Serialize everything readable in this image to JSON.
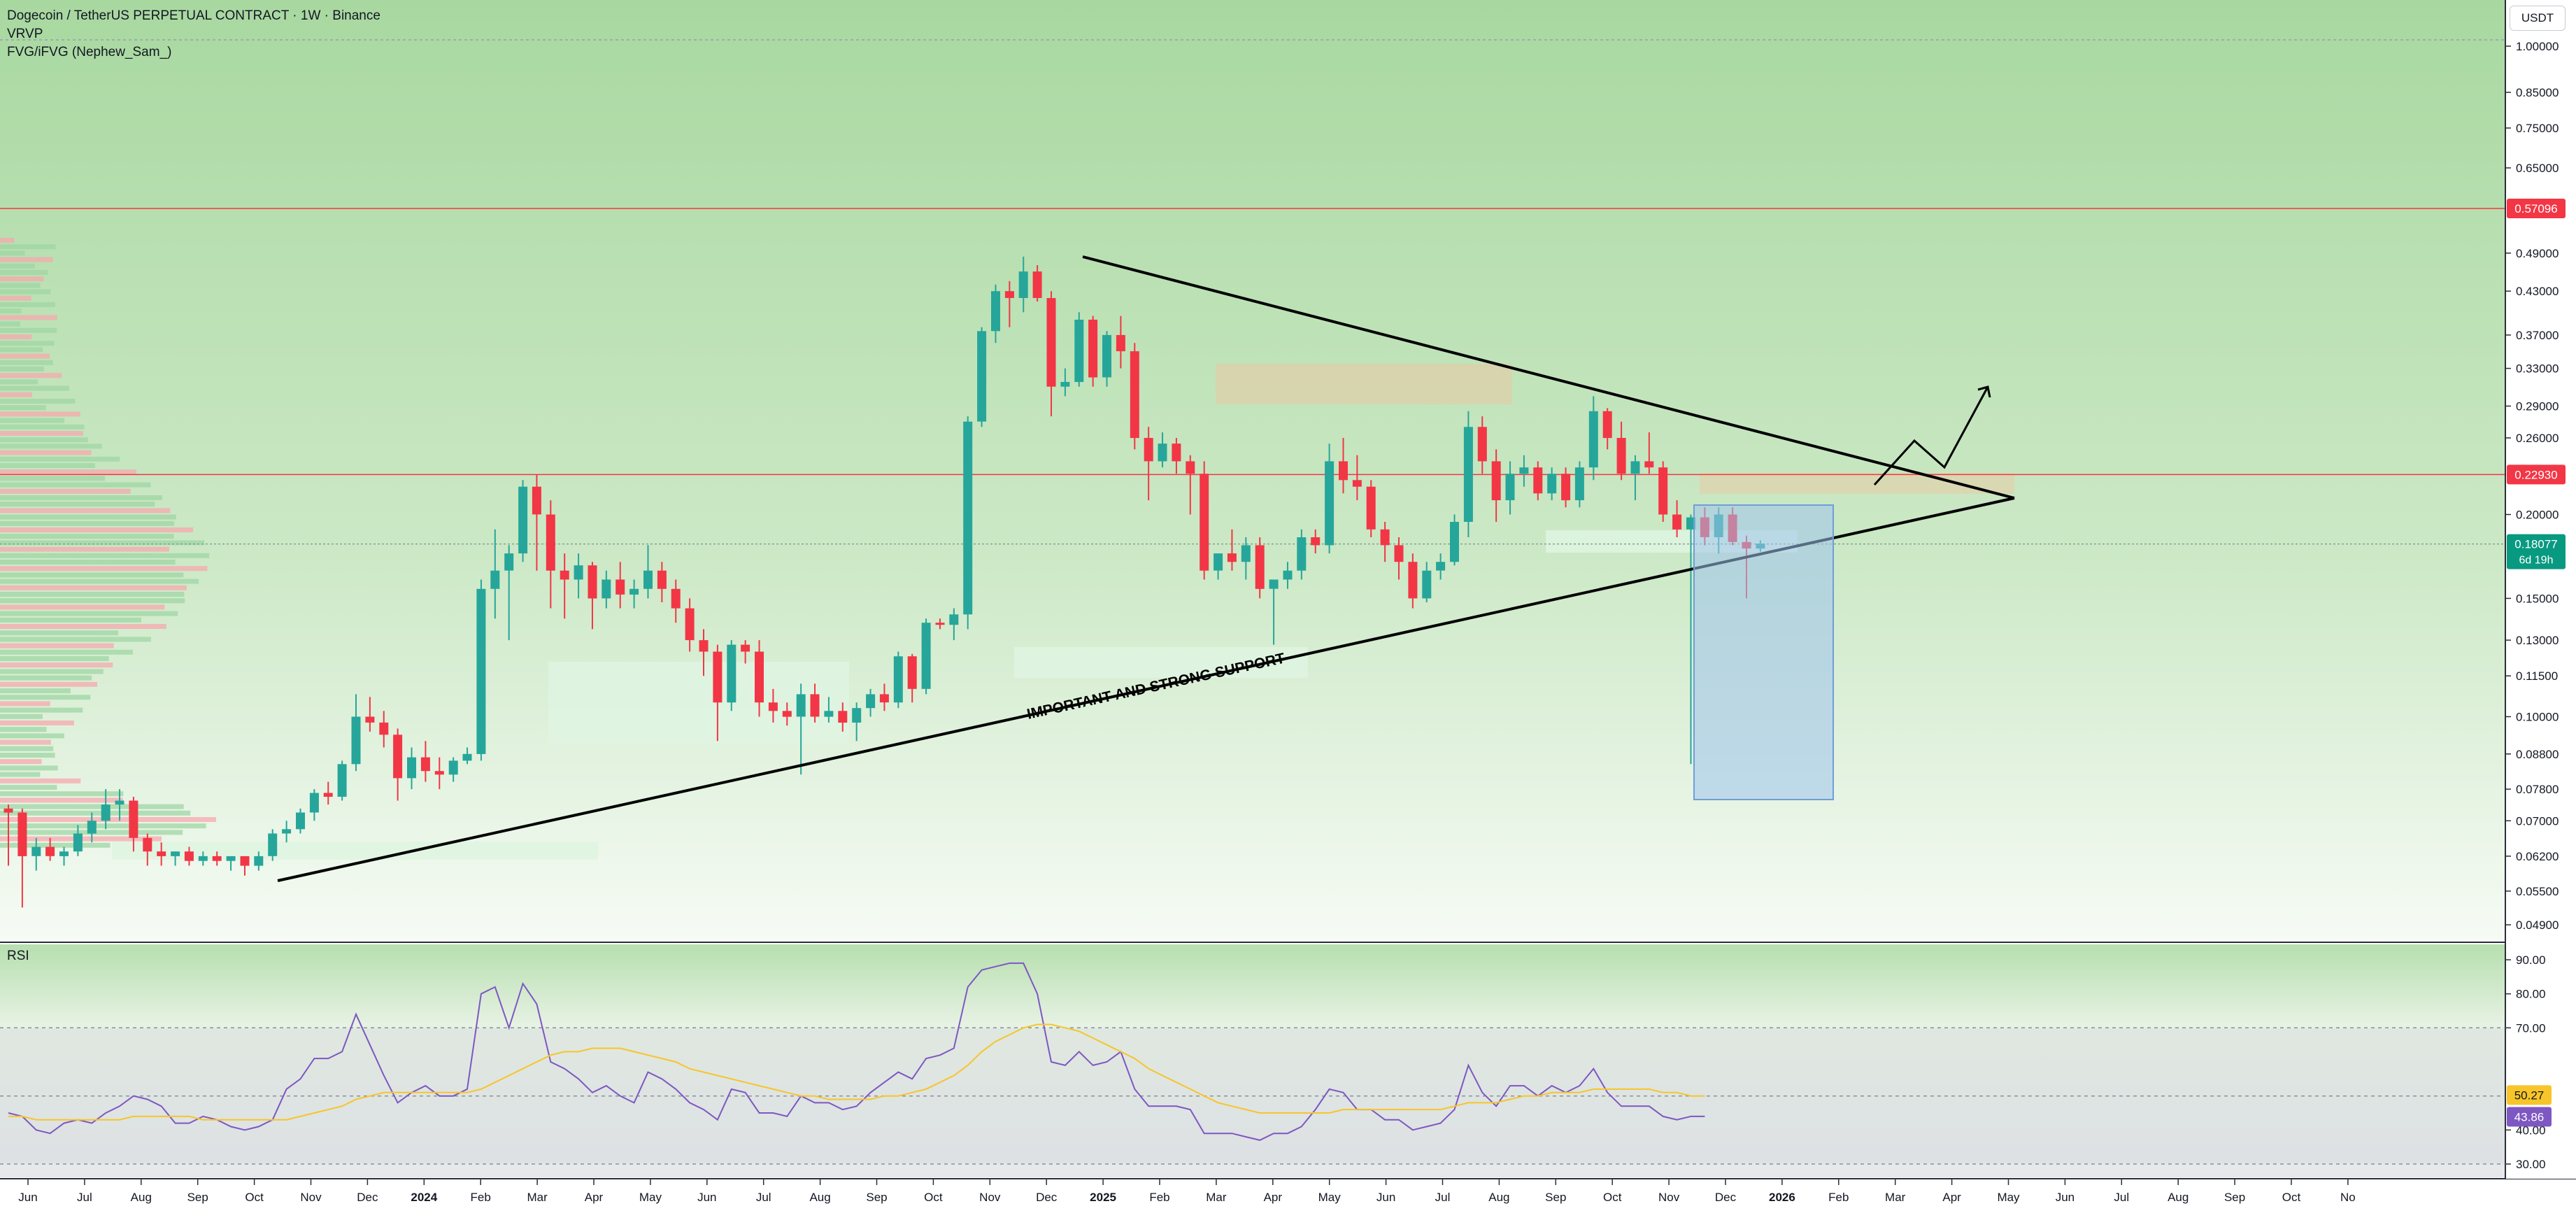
{
  "header": {
    "title": "Dogecoin / TetherUS PERPETUAL CONTRACT · 1W · Binance",
    "indicator1": "VRVP",
    "indicator2": "FVG/iFVG (Nephew_Sam_)",
    "currency_button": "USDT"
  },
  "rsi_panel": {
    "label": "RSI"
  },
  "colors": {
    "bull": "#26a69a",
    "bear": "#f23645",
    "price_line_red": "#f23645",
    "price_badge_green": "#089981",
    "rsi_line": "#7e57c2",
    "rsi_ma": "#f7c52a",
    "bg_top": "#a8d8a0",
    "bg_bottom": "#f4faf3"
  },
  "chart_data": [
    {
      "type": "candlestick",
      "title": "Dogecoin / TetherUS PERPETUAL CONTRACT · 1W · Binance",
      "scale": "log",
      "ylim": [
        0.046,
        1.02
      ],
      "y_ticks": [
        "1.00000",
        "0.85000",
        "0.75000",
        "0.65000",
        "0.49000",
        "0.43000",
        "0.37000",
        "0.33000",
        "0.29000",
        "0.26000",
        "0.20000",
        "0.15000",
        "0.13000",
        "0.11500",
        "0.10000",
        "0.08800",
        "0.07800",
        "0.07000",
        "0.06200",
        "0.05500",
        "0.04900"
      ],
      "x_ticks": [
        "Jun",
        "Jul",
        "Aug",
        "Sep",
        "Oct",
        "Nov",
        "Dec",
        "2024",
        "Feb",
        "Mar",
        "Apr",
        "May",
        "Jun",
        "Jul",
        "Aug",
        "Sep",
        "Oct",
        "Nov",
        "Dec",
        "2025",
        "Feb",
        "Mar",
        "Apr",
        "May",
        "Jun",
        "Jul",
        "Aug",
        "Sep",
        "Oct",
        "Nov",
        "Dec",
        "2026",
        "Feb",
        "Mar",
        "Apr",
        "May",
        "Jun",
        "Jul",
        "Aug",
        "Sep",
        "Oct",
        "No"
      ],
      "price_labels": [
        {
          "label": "0.57096",
          "value": 0.57096,
          "color": "red"
        },
        {
          "label": "0.22930",
          "value": 0.2293,
          "color": "red"
        },
        {
          "label": "0.18077",
          "value": 0.18077,
          "color": "green",
          "sublabel": "6d 19h"
        }
      ],
      "ohlc": [
        [
          0.073,
          0.074,
          0.06,
          0.072
        ],
        [
          0.072,
          0.073,
          0.052,
          0.062
        ],
        [
          0.062,
          0.066,
          0.059,
          0.064
        ],
        [
          0.064,
          0.066,
          0.061,
          0.062
        ],
        [
          0.062,
          0.064,
          0.06,
          0.063
        ],
        [
          0.063,
          0.069,
          0.062,
          0.067
        ],
        [
          0.067,
          0.072,
          0.065,
          0.07
        ],
        [
          0.07,
          0.078,
          0.068,
          0.074
        ],
        [
          0.074,
          0.078,
          0.07,
          0.075
        ],
        [
          0.075,
          0.076,
          0.063,
          0.066
        ],
        [
          0.066,
          0.067,
          0.06,
          0.063
        ],
        [
          0.063,
          0.065,
          0.06,
          0.062
        ],
        [
          0.062,
          0.063,
          0.06,
          0.063
        ],
        [
          0.063,
          0.064,
          0.06,
          0.061
        ],
        [
          0.061,
          0.063,
          0.06,
          0.062
        ],
        [
          0.062,
          0.063,
          0.06,
          0.061
        ],
        [
          0.061,
          0.062,
          0.059,
          0.062
        ],
        [
          0.062,
          0.062,
          0.058,
          0.06
        ],
        [
          0.06,
          0.063,
          0.059,
          0.062
        ],
        [
          0.062,
          0.068,
          0.061,
          0.067
        ],
        [
          0.067,
          0.07,
          0.065,
          0.068
        ],
        [
          0.068,
          0.073,
          0.067,
          0.072
        ],
        [
          0.072,
          0.078,
          0.07,
          0.077
        ],
        [
          0.077,
          0.08,
          0.074,
          0.076
        ],
        [
          0.076,
          0.086,
          0.075,
          0.085
        ],
        [
          0.085,
          0.108,
          0.083,
          0.1
        ],
        [
          0.1,
          0.107,
          0.095,
          0.098
        ],
        [
          0.098,
          0.102,
          0.09,
          0.094
        ],
        [
          0.094,
          0.096,
          0.075,
          0.081
        ],
        [
          0.081,
          0.09,
          0.078,
          0.087
        ],
        [
          0.087,
          0.092,
          0.08,
          0.083
        ],
        [
          0.083,
          0.087,
          0.078,
          0.082
        ],
        [
          0.082,
          0.087,
          0.08,
          0.086
        ],
        [
          0.086,
          0.09,
          0.085,
          0.088
        ],
        [
          0.088,
          0.16,
          0.086,
          0.155
        ],
        [
          0.155,
          0.19,
          0.14,
          0.165
        ],
        [
          0.165,
          0.18,
          0.13,
          0.175
        ],
        [
          0.175,
          0.225,
          0.17,
          0.22
        ],
        [
          0.22,
          0.229,
          0.165,
          0.2
        ],
        [
          0.2,
          0.21,
          0.145,
          0.165
        ],
        [
          0.165,
          0.175,
          0.14,
          0.16
        ],
        [
          0.16,
          0.175,
          0.15,
          0.168
        ],
        [
          0.168,
          0.17,
          0.135,
          0.15
        ],
        [
          0.15,
          0.165,
          0.145,
          0.16
        ],
        [
          0.16,
          0.17,
          0.145,
          0.152
        ],
        [
          0.152,
          0.16,
          0.145,
          0.155
        ],
        [
          0.155,
          0.18,
          0.15,
          0.165
        ],
        [
          0.165,
          0.17,
          0.148,
          0.155
        ],
        [
          0.155,
          0.16,
          0.138,
          0.145
        ],
        [
          0.145,
          0.15,
          0.125,
          0.13
        ],
        [
          0.13,
          0.135,
          0.115,
          0.125
        ],
        [
          0.125,
          0.128,
          0.092,
          0.105
        ],
        [
          0.105,
          0.13,
          0.102,
          0.128
        ],
        [
          0.128,
          0.13,
          0.12,
          0.125
        ],
        [
          0.125,
          0.13,
          0.1,
          0.105
        ],
        [
          0.105,
          0.11,
          0.098,
          0.102
        ],
        [
          0.102,
          0.105,
          0.097,
          0.1
        ],
        [
          0.1,
          0.112,
          0.082,
          0.108
        ],
        [
          0.108,
          0.112,
          0.098,
          0.1
        ],
        [
          0.1,
          0.107,
          0.098,
          0.102
        ],
        [
          0.102,
          0.105,
          0.095,
          0.098
        ],
        [
          0.098,
          0.105,
          0.092,
          0.103
        ],
        [
          0.103,
          0.11,
          0.1,
          0.108
        ],
        [
          0.108,
          0.112,
          0.102,
          0.105
        ],
        [
          0.105,
          0.125,
          0.103,
          0.123
        ],
        [
          0.123,
          0.124,
          0.105,
          0.11
        ],
        [
          0.11,
          0.14,
          0.108,
          0.138
        ],
        [
          0.138,
          0.14,
          0.135,
          0.137
        ],
        [
          0.137,
          0.145,
          0.13,
          0.142
        ],
        [
          0.142,
          0.28,
          0.135,
          0.275
        ],
        [
          0.275,
          0.38,
          0.27,
          0.375
        ],
        [
          0.375,
          0.44,
          0.36,
          0.43
        ],
        [
          0.43,
          0.445,
          0.38,
          0.42
        ],
        [
          0.42,
          0.484,
          0.4,
          0.46
        ],
        [
          0.46,
          0.47,
          0.415,
          0.42
        ],
        [
          0.42,
          0.43,
          0.28,
          0.31
        ],
        [
          0.31,
          0.33,
          0.3,
          0.315
        ],
        [
          0.315,
          0.4,
          0.31,
          0.39
        ],
        [
          0.39,
          0.395,
          0.31,
          0.32
        ],
        [
          0.32,
          0.375,
          0.31,
          0.37
        ],
        [
          0.37,
          0.395,
          0.33,
          0.35
        ],
        [
          0.35,
          0.36,
          0.25,
          0.26
        ],
        [
          0.26,
          0.27,
          0.21,
          0.24
        ],
        [
          0.24,
          0.265,
          0.235,
          0.255
        ],
        [
          0.255,
          0.26,
          0.23,
          0.24
        ],
        [
          0.24,
          0.245,
          0.2,
          0.23
        ],
        [
          0.23,
          0.24,
          0.16,
          0.165
        ],
        [
          0.165,
          0.175,
          0.16,
          0.175
        ],
        [
          0.175,
          0.19,
          0.165,
          0.17
        ],
        [
          0.17,
          0.185,
          0.16,
          0.18
        ],
        [
          0.18,
          0.185,
          0.15,
          0.155
        ],
        [
          0.155,
          0.16,
          0.128,
          0.16
        ],
        [
          0.16,
          0.17,
          0.155,
          0.165
        ],
        [
          0.165,
          0.19,
          0.16,
          0.185
        ],
        [
          0.185,
          0.19,
          0.175,
          0.18
        ],
        [
          0.18,
          0.255,
          0.175,
          0.24
        ],
        [
          0.24,
          0.26,
          0.215,
          0.225
        ],
        [
          0.225,
          0.245,
          0.21,
          0.22
        ],
        [
          0.22,
          0.225,
          0.185,
          0.19
        ],
        [
          0.19,
          0.195,
          0.17,
          0.18
        ],
        [
          0.18,
          0.185,
          0.16,
          0.17
        ],
        [
          0.17,
          0.175,
          0.145,
          0.15
        ],
        [
          0.15,
          0.17,
          0.148,
          0.165
        ],
        [
          0.165,
          0.175,
          0.16,
          0.17
        ],
        [
          0.17,
          0.2,
          0.168,
          0.195
        ],
        [
          0.195,
          0.285,
          0.185,
          0.27
        ],
        [
          0.27,
          0.28,
          0.23,
          0.24
        ],
        [
          0.24,
          0.25,
          0.195,
          0.21
        ],
        [
          0.21,
          0.24,
          0.2,
          0.23
        ],
        [
          0.23,
          0.245,
          0.22,
          0.235
        ],
        [
          0.235,
          0.24,
          0.21,
          0.215
        ],
        [
          0.215,
          0.235,
          0.21,
          0.23
        ],
        [
          0.23,
          0.235,
          0.205,
          0.21
        ],
        [
          0.21,
          0.24,
          0.205,
          0.235
        ],
        [
          0.235,
          0.3,
          0.225,
          0.285
        ],
        [
          0.285,
          0.288,
          0.25,
          0.26
        ],
        [
          0.26,
          0.275,
          0.225,
          0.23
        ],
        [
          0.23,
          0.245,
          0.21,
          0.24
        ],
        [
          0.24,
          0.265,
          0.23,
          0.235
        ],
        [
          0.235,
          0.24,
          0.195,
          0.2
        ],
        [
          0.2,
          0.21,
          0.185,
          0.19
        ],
        [
          0.19,
          0.2,
          0.085,
          0.198
        ],
        [
          0.198,
          0.205,
          0.18,
          0.185
        ],
        [
          0.185,
          0.205,
          0.175,
          0.2
        ],
        [
          0.2,
          0.205,
          0.18,
          0.182
        ],
        [
          0.182,
          0.186,
          0.15,
          0.178
        ],
        [
          0.178,
          0.183,
          0.176,
          0.181
        ]
      ],
      "annotation": "IMPORTANT AND STRONG SUPPORT"
    },
    {
      "type": "line",
      "title": "RSI",
      "ylim": [
        25,
        94
      ],
      "y_ticks": [
        "90.00",
        "80.00",
        "70.00",
        "40.00",
        "30.00"
      ],
      "level_lines": [
        70,
        50,
        30
      ],
      "current_values": [
        {
          "label": "50.27",
          "value": 50.27,
          "color": "yellow"
        },
        {
          "label": "43.86",
          "value": 43.86,
          "color": "purple"
        }
      ],
      "series": [
        {
          "values": [
            45,
            44,
            40,
            39,
            42,
            43,
            42,
            45,
            47,
            50,
            49,
            47,
            42,
            42,
            44,
            43,
            41,
            40,
            41,
            43,
            52,
            55,
            61,
            61,
            63,
            74,
            65,
            56,
            48,
            51,
            53,
            50,
            50,
            52,
            80,
            82,
            70,
            83,
            77,
            60,
            58,
            55,
            51,
            53,
            50,
            48,
            57,
            55,
            52,
            48,
            46,
            43,
            52,
            51,
            45,
            45,
            44,
            50,
            48,
            48,
            46,
            47,
            51,
            54,
            57,
            55,
            61,
            62,
            64,
            82,
            87,
            88,
            89,
            89,
            80,
            60,
            59,
            63,
            59,
            60,
            63,
            52,
            47,
            47,
            47,
            46,
            39,
            39,
            39,
            38,
            37,
            39,
            39,
            41,
            46,
            52,
            51,
            46,
            46,
            43,
            43,
            40,
            41,
            42,
            46,
            59,
            51,
            47,
            53,
            53,
            50,
            53,
            51,
            53,
            58,
            51,
            47,
            47,
            47,
            44,
            43,
            44,
            44
          ]
        },
        {
          "values": [
            44,
            44,
            43,
            43,
            43,
            43,
            43,
            43,
            43,
            44,
            44,
            44,
            44,
            44,
            43,
            43,
            43,
            43,
            43,
            43,
            43,
            44,
            45,
            46,
            47,
            49,
            50,
            51,
            51,
            51,
            51,
            51,
            51,
            51,
            52,
            54,
            56,
            58,
            60,
            62,
            63,
            63,
            64,
            64,
            64,
            63,
            62,
            61,
            60,
            58,
            57,
            56,
            55,
            54,
            53,
            52,
            51,
            50,
            50,
            49,
            49,
            49,
            49,
            50,
            50,
            51,
            52,
            54,
            56,
            59,
            63,
            66,
            68,
            70,
            71,
            71,
            70,
            69,
            67,
            65,
            63,
            61,
            58,
            56,
            54,
            52,
            50,
            48,
            47,
            46,
            45,
            45,
            45,
            45,
            45,
            45,
            46,
            46,
            46,
            46,
            46,
            46,
            46,
            46,
            47,
            48,
            48,
            48,
            49,
            50,
            50,
            51,
            51,
            51,
            52,
            52,
            52,
            52,
            52,
            51,
            51,
            50,
            50
          ]
        }
      ]
    }
  ]
}
